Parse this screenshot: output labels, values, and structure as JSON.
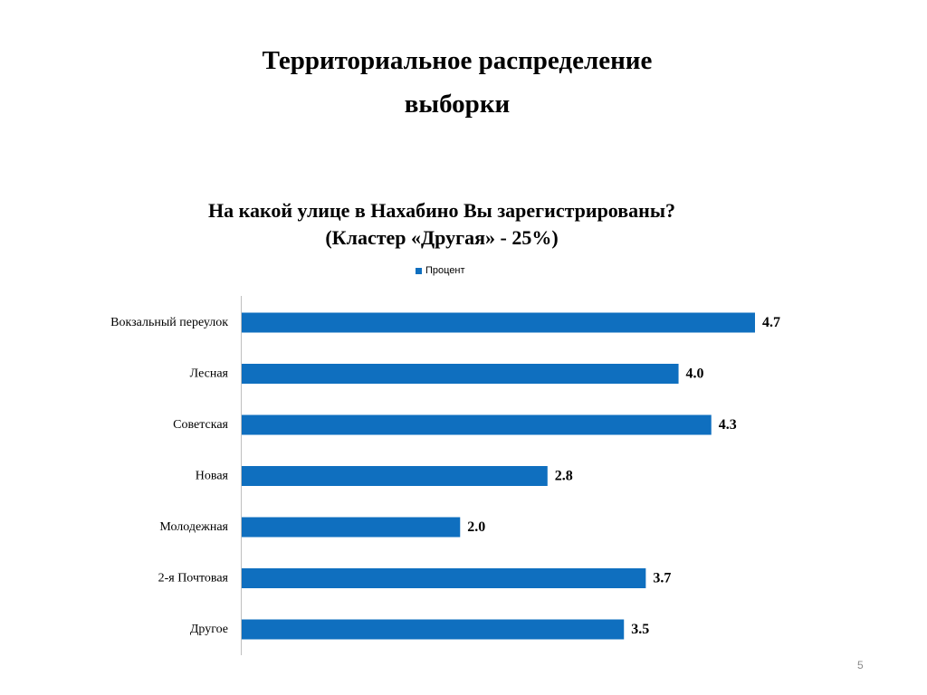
{
  "slide": {
    "title_line_1": "Территориальное распределение",
    "title_line_2": "выборки",
    "page_number": "5"
  },
  "chart_data": {
    "type": "bar",
    "orientation": "horizontal",
    "title_line_1": "На какой улице в Нахабино Вы зарегистрированы?",
    "title_line_2": "(Кластер «Другая» - 25%)",
    "categories": [
      "Вокзальный переулок",
      "Лесная",
      "Советская",
      "Новая",
      "Молодежная",
      "2-я Почтовая",
      "Другое"
    ],
    "series": [
      {
        "name": "Процент",
        "color": "#0f6fbf",
        "values": [
          4.7,
          4.0,
          4.3,
          2.8,
          2.0,
          3.7,
          3.5
        ],
        "value_labels": [
          "4.7",
          "4.0",
          "4.3",
          "2.8",
          "2.0",
          "3.7",
          "3.5"
        ]
      }
    ],
    "xlim": [
      0,
      4.7
    ],
    "grid": false,
    "legend_position": "top"
  }
}
